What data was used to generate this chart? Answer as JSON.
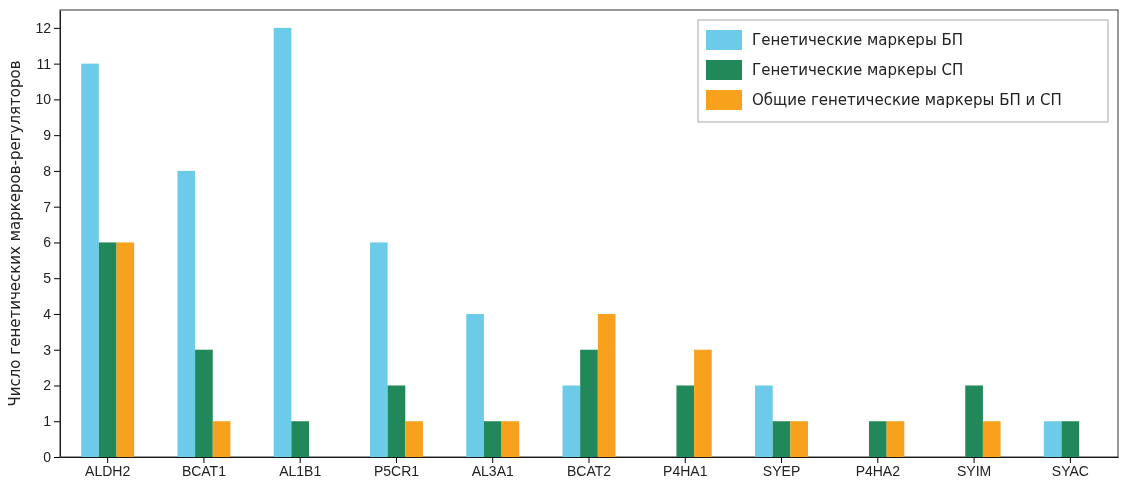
{
  "chart_data": {
    "type": "bar",
    "ylabel": "Число генетических маркеров-регуляторов",
    "categories": [
      "ALDH2",
      "BCAT1",
      "AL1B1",
      "P5CR1",
      "AL3A1",
      "BCAT2",
      "P4HA1",
      "SYEP",
      "P4HA2",
      "SYIM",
      "SYAC"
    ],
    "series": [
      {
        "name": "Генетические маркеры БП",
        "color": "#6dcbea",
        "values": [
          11,
          8,
          12,
          6,
          4,
          2,
          0,
          2,
          0,
          0,
          1
        ]
      },
      {
        "name": "Генетические маркеры СП",
        "color": "#21885a",
        "values": [
          6,
          3,
          1,
          2,
          1,
          3,
          2,
          1,
          1,
          2,
          1
        ]
      },
      {
        "name": "Общие генетические маркеры БП и СП",
        "color": "#f7a11c",
        "values": [
          6,
          1,
          0,
          1,
          1,
          4,
          3,
          1,
          1,
          1,
          0
        ]
      }
    ],
    "ylim": [
      0,
      12.5
    ],
    "yticks": [
      0,
      1,
      2,
      3,
      4,
      5,
      6,
      7,
      8,
      9,
      10,
      11,
      12
    ],
    "grid": false,
    "legend": "top right"
  }
}
